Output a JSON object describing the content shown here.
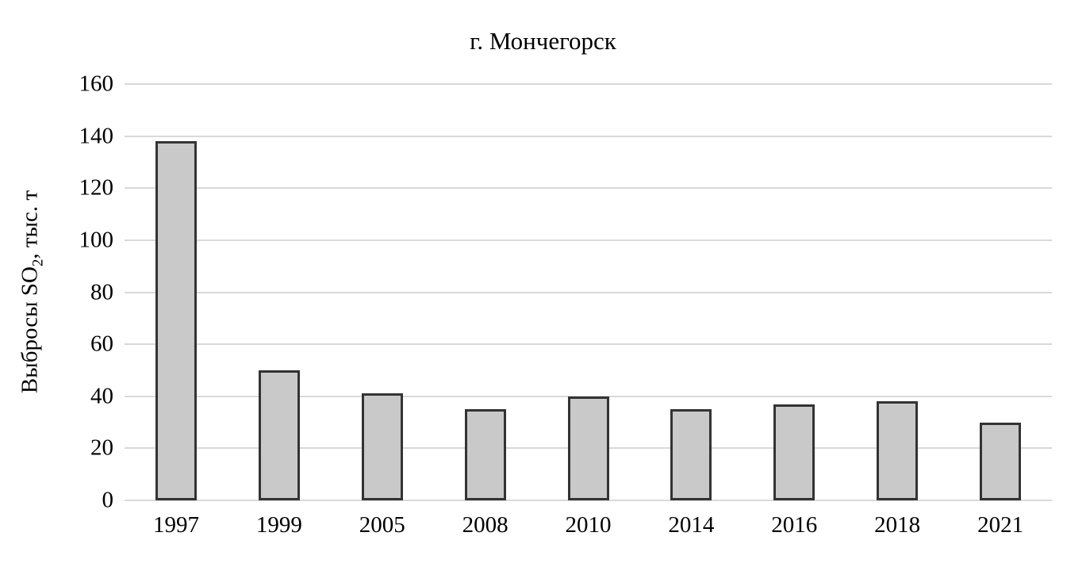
{
  "chart_data": {
    "type": "bar",
    "title": "г. Мончегорск",
    "ylabel": "Выбросы SO2, тыс. т",
    "ylabel_parts": {
      "prefix": "Выбросы SO",
      "sub": "2",
      "suffix": ", тыс. т"
    },
    "xlabel": "",
    "categories": [
      "1997",
      "1999",
      "2005",
      "2008",
      "2010",
      "2014",
      "2016",
      "2018",
      "2021"
    ],
    "values": [
      138,
      50,
      41,
      35,
      40,
      35,
      37,
      38,
      30
    ],
    "ylim": [
      0,
      160
    ],
    "yticks": [
      0,
      20,
      40,
      60,
      80,
      100,
      120,
      140,
      160
    ],
    "grid": "horizontal",
    "legend": "none",
    "colors": {
      "bar_fill": "#c9c9c9",
      "bar_border": "#333333",
      "gridline": "#d9d9d9",
      "text": "#000000",
      "background": "#ffffff"
    }
  }
}
